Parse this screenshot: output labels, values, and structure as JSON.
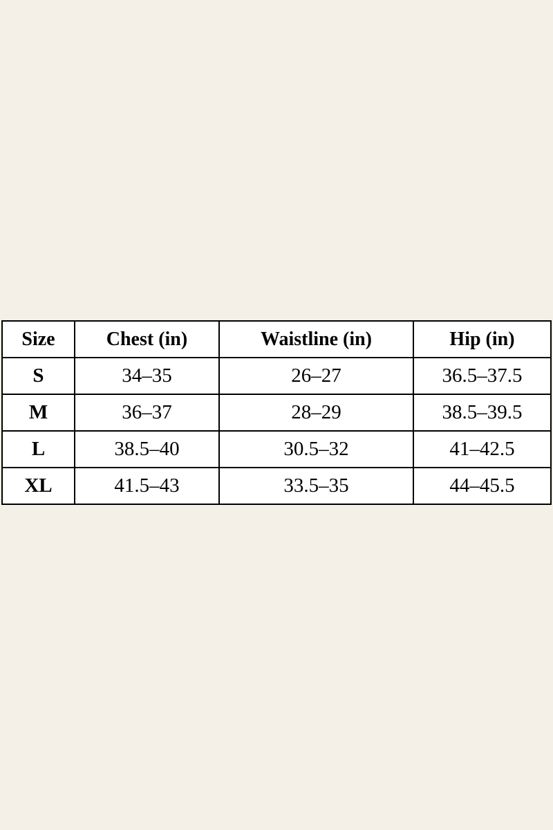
{
  "colors": {
    "page_background": "#f4f0e7",
    "cell_background": "#ffffff",
    "border": "#000000",
    "text": "#000000"
  },
  "chart_data": {
    "type": "table",
    "columns": [
      "Size",
      "Chest (in)",
      "Waistline (in)",
      "Hip (in)"
    ],
    "rows": [
      [
        "S",
        "34–35",
        "26–27",
        "36.5–37.5"
      ],
      [
        "M",
        "36–37",
        "28–29",
        "38.5–39.5"
      ],
      [
        "L",
        "38.5–40",
        "30.5–32",
        "41–42.5"
      ],
      [
        "XL",
        "41.5–43",
        "33.5–35",
        "44–45.5"
      ]
    ]
  }
}
